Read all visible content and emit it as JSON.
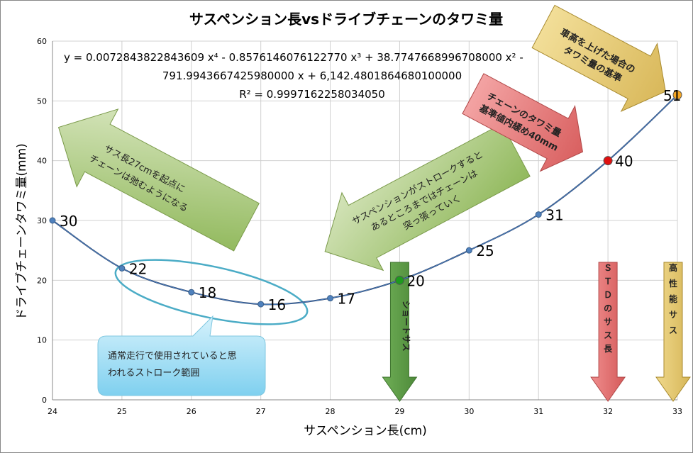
{
  "chart_data": {
    "type": "line",
    "title": "サスペンション長vsドライブチェーンのタワミ量",
    "xlabel": "サスペンション長(cm)",
    "ylabel": "ドライブチェーンタワミ量(mm)",
    "xlim": [
      24,
      33
    ],
    "ylim": [
      0,
      60
    ],
    "xticks": [
      "24",
      "25",
      "26",
      "27",
      "28",
      "29",
      "30",
      "31",
      "32",
      "33"
    ],
    "yticks": [
      "0",
      "10",
      "20",
      "30",
      "40",
      "50",
      "60"
    ],
    "grid": true,
    "legend": "none",
    "series": [
      {
        "x": [
          24,
          25,
          26,
          27,
          28,
          29,
          30,
          31,
          32,
          33
        ],
        "values": [
          30,
          22,
          18,
          16,
          17,
          20,
          25,
          31,
          40,
          51
        ],
        "labels": [
          "30",
          "22",
          "18",
          "16",
          "17",
          "20",
          "25",
          "31",
          "40",
          "51"
        ]
      }
    ],
    "highlight_points": [
      {
        "x": 29,
        "y": 20,
        "color": "#1e9a1e"
      },
      {
        "x": 32,
        "y": 40,
        "color": "#e01010"
      },
      {
        "x": 33,
        "y": 51,
        "color": "#f5a623"
      }
    ],
    "trendline": {
      "line1": "y = 0.0072843822843609 x⁴ - 0.857614607612277​0 x³ + 38.774766899670800​0 x² -",
      "line2": "791.9943667425980000 x + 6,142.4801864680100000",
      "line3": "R² = 0.9997162258034050"
    },
    "annotations": {
      "arrow_left_text": [
        "サス長27cmを起点に",
        "チェーンは弛むようになる"
      ],
      "arrow_mid_text": [
        "サスペンションがストロークすると",
        "あるところまではチェーンは",
        "突っ張っていく"
      ],
      "arrow_red_text": [
        "チェーンのタワミ量",
        "基準値内緩め40mm"
      ],
      "arrow_gold_text": [
        "車高を上げた場合の",
        "タワミ量の基準"
      ],
      "callout_text": [
        "通常走行で使用されていると思",
        "われるストローク範囲"
      ],
      "down_arrows": [
        {
          "text": "ショートサス",
          "x": 29,
          "color": "#6aa84f"
        },
        {
          "text": "ＳＴＤのサス長",
          "x": 32,
          "color": "#e06666"
        },
        {
          "text": "高性能サス",
          "x": 33,
          "color": "#e6c77a"
        }
      ]
    },
    "colors": {
      "line": "#1f3864",
      "marker": "#4f81bd",
      "grid": "#d0d0d0"
    }
  }
}
